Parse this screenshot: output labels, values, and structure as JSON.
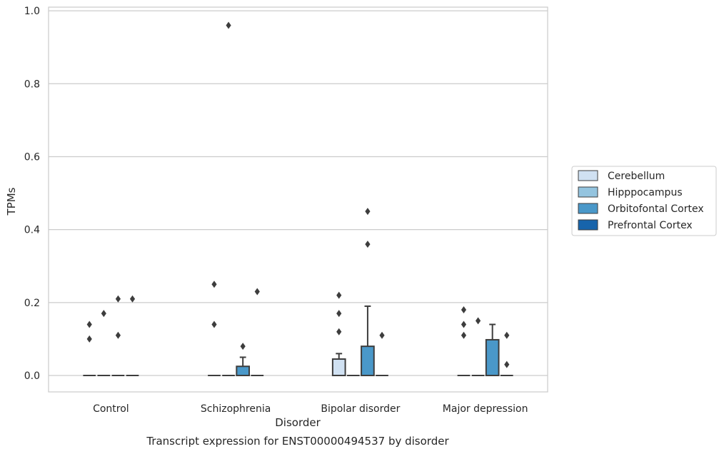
{
  "chart_data": {
    "type": "box",
    "title": "Transcript expression for ENST00000494537 by disorder",
    "xlabel": "Disorder",
    "ylabel": "TPMs",
    "ylim": [
      -0.045,
      1.01
    ],
    "yticks": [
      "0.0",
      "0.2",
      "0.4",
      "0.6",
      "0.8",
      "1.0"
    ],
    "grid": true,
    "legend_position": "right",
    "categories": [
      "Control",
      "Schizophrenia",
      "Bipolar disorder",
      "Major depression"
    ],
    "series": [
      {
        "name": "Cerebellum",
        "color": "#d0e1f2",
        "boxes": [
          {
            "q1": 0,
            "median": 0,
            "q3": 0,
            "whislo": 0,
            "whishi": 0,
            "fliers": [
              0.1,
              0.14
            ]
          },
          {
            "q1": 0,
            "median": 0,
            "q3": 0,
            "whislo": 0,
            "whishi": 0,
            "fliers": [
              0.14,
              0.25
            ]
          },
          {
            "q1": 0,
            "median": 0,
            "q3": 0.045,
            "whislo": 0,
            "whishi": 0.06,
            "fliers": [
              0.12,
              0.17,
              0.22
            ]
          },
          {
            "q1": 0,
            "median": 0,
            "q3": 0,
            "whislo": 0,
            "whishi": 0,
            "fliers": [
              0.11,
              0.14,
              0.18
            ]
          }
        ]
      },
      {
        "name": "Hipppocampus",
        "color": "#94c4df",
        "boxes": [
          {
            "q1": 0,
            "median": 0,
            "q3": 0,
            "whislo": 0,
            "whishi": 0,
            "fliers": [
              0.17
            ]
          },
          {
            "q1": 0,
            "median": 0,
            "q3": 0,
            "whislo": 0,
            "whishi": 0,
            "fliers": [
              0.96
            ]
          },
          {
            "q1": 0,
            "median": 0,
            "q3": 0,
            "whislo": 0,
            "whishi": 0,
            "fliers": []
          },
          {
            "q1": 0,
            "median": 0,
            "q3": 0,
            "whislo": 0,
            "whishi": 0,
            "fliers": [
              0.15
            ]
          }
        ]
      },
      {
        "name": "Orbitofontal Cortex",
        "color": "#4a98c9",
        "boxes": [
          {
            "q1": 0,
            "median": 0,
            "q3": 0,
            "whislo": 0,
            "whishi": 0,
            "fliers": [
              0.11,
              0.21
            ]
          },
          {
            "q1": 0,
            "median": 0,
            "q3": 0.025,
            "whislo": 0,
            "whishi": 0.05,
            "fliers": [
              0.08
            ]
          },
          {
            "q1": 0,
            "median": 0,
            "q3": 0.08,
            "whislo": 0,
            "whishi": 0.19,
            "fliers": [
              0.36,
              0.45
            ]
          },
          {
            "q1": 0,
            "median": 0,
            "q3": 0.098,
            "whislo": 0,
            "whishi": 0.14,
            "fliers": []
          }
        ]
      },
      {
        "name": "Prefrontal Cortex",
        "color": "#1764ab",
        "boxes": [
          {
            "q1": 0,
            "median": 0,
            "q3": 0,
            "whislo": 0,
            "whishi": 0,
            "fliers": [
              0.21
            ]
          },
          {
            "q1": 0,
            "median": 0,
            "q3": 0,
            "whislo": 0,
            "whishi": 0,
            "fliers": [
              0.23
            ]
          },
          {
            "q1": 0,
            "median": 0,
            "q3": 0,
            "whislo": 0,
            "whishi": 0,
            "fliers": [
              0.11
            ]
          },
          {
            "q1": 0,
            "median": 0,
            "q3": 0,
            "whislo": 0,
            "whishi": 0,
            "fliers": [
              0.03,
              0.11
            ]
          }
        ]
      }
    ]
  }
}
